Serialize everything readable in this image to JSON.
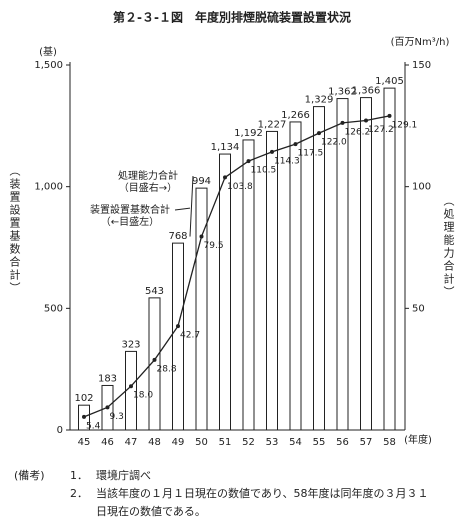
{
  "chart_data": {
    "type": "bar-line",
    "title": "第２-３-１図　年度別排煙脱硫装置設置状況",
    "y_unit": "(基)",
    "y2_unit": "(百万Nm³/h)",
    "y_label": "（装置設置基数合計）",
    "y2_label": "（処理能力合計）",
    "x_unit": "(年度)",
    "categories": [
      "45",
      "46",
      "47",
      "48",
      "49",
      "50",
      "51",
      "52",
      "53",
      "54",
      "55",
      "56",
      "57",
      "58"
    ],
    "series": [
      {
        "name": "装置設置基数合計",
        "type": "bar",
        "color": "#ffffff",
        "values": [
          102,
          183,
          323,
          543,
          768,
          994,
          1134,
          1192,
          1227,
          1266,
          1329,
          1362,
          1366,
          1405
        ],
        "value_labels": [
          "102",
          "183",
          "323",
          "543",
          "768",
          "994",
          "1,134",
          "1,192",
          "1,227",
          "1,266",
          "1,329",
          "1,362",
          "1,366",
          "1,405"
        ]
      },
      {
        "name": "処理能力合計",
        "type": "line",
        "axis": "y2",
        "color": "#222222",
        "values": [
          5.4,
          9.3,
          18.0,
          28.8,
          42.7,
          79.5,
          103.8,
          110.5,
          114.3,
          117.5,
          122.0,
          126.2,
          127.2,
          129.1
        ],
        "value_labels": [
          "5.4",
          "9.3",
          "18.0",
          "28.8",
          "42.7",
          "79.5",
          "103.8",
          "110.5",
          "114.3",
          "117.5",
          "122.0",
          "126.2",
          "127.2",
          "129.1"
        ]
      }
    ],
    "ylim": [
      0,
      1500
    ],
    "yticks": [
      0,
      500,
      {
        "value": 1000,
        "label": "1,000"
      },
      {
        "value": 1500,
        "label": "1,500"
      }
    ],
    "y2lim": [
      0,
      150
    ],
    "y2ticks": [
      50,
      100,
      150
    ],
    "annotations": [
      {
        "series": 1,
        "lines": [
          "処理能力合計",
          "（目盛右→）"
        ]
      },
      {
        "series": 0,
        "lines": [
          "装置設置基数合計",
          "（←目盛左）"
        ]
      }
    ]
  },
  "notes": {
    "heading": "(備考)",
    "items": [
      {
        "number": "1．",
        "lines": [
          "環境庁調べ"
        ]
      },
      {
        "number": "2．",
        "lines": [
          "当該年度の１月１日現在の数値であり、58年度は同年度の３月３１",
          "日現在の数値である。"
        ]
      }
    ]
  }
}
